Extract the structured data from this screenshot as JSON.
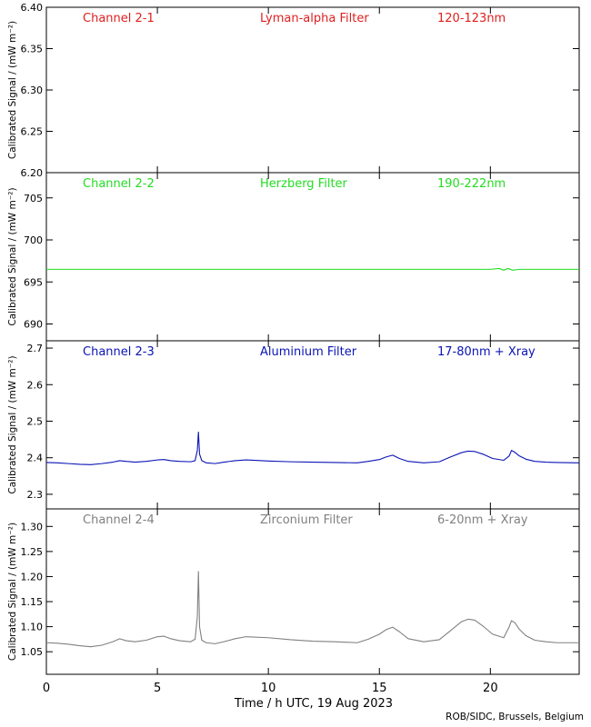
{
  "chart_data": [
    {
      "type": "line",
      "title": "Channel 2-1",
      "filter": "Lyman-alpha Filter",
      "band": "120-123nm",
      "color": "#e01e1e",
      "ylabel": "Calibrated Signal / (mW m⁻²)",
      "ylim": [
        6.2,
        6.4
      ],
      "yticks": [
        6.2,
        6.25,
        6.3,
        6.35,
        6.4
      ],
      "ytick_decimals": 2,
      "series": []
    },
    {
      "type": "line",
      "title": "Channel 2-2",
      "filter": "Herzberg Filter",
      "band": "190-222nm",
      "color": "#22dd22",
      "ylabel": "Calibrated Signal / (mW m⁻²)",
      "ylim": [
        688,
        708
      ],
      "yticks": [
        690,
        695,
        700,
        705
      ],
      "ytick_decimals": 0,
      "series": [
        {
          "x": [
            0,
            5,
            10,
            15,
            20,
            20.4,
            20.6,
            20.8,
            21.0,
            21.3,
            22,
            24
          ],
          "y": [
            696.5,
            696.5,
            696.5,
            696.5,
            696.5,
            696.6,
            696.4,
            696.6,
            696.4,
            696.5,
            696.5,
            696.5
          ]
        }
      ]
    },
    {
      "type": "line",
      "title": "Channel 2-3",
      "filter": "Aluminium Filter",
      "band": "17-80nm + Xray",
      "color": "#0a14b4",
      "ylabel": "Calibrated Signal / (mW m⁻²)",
      "ylim": [
        2.26,
        2.72
      ],
      "yticks": [
        2.3,
        2.4,
        2.5,
        2.6,
        2.7
      ],
      "ytick_decimals": 1,
      "series": [
        {
          "x": [
            0,
            0.5,
            1.0,
            1.5,
            2.0,
            2.5,
            3.0,
            3.3,
            3.6,
            4.0,
            4.5,
            5.0,
            5.3,
            5.6,
            6.0,
            6.5,
            6.7,
            6.8,
            6.85,
            6.9,
            7.0,
            7.2,
            7.6,
            8.0,
            8.5,
            9.0,
            10.0,
            11.0,
            12.0,
            13.0,
            14.0,
            14.5,
            15.0,
            15.3,
            15.6,
            15.9,
            16.3,
            17.0,
            17.7,
            18.2,
            18.7,
            19.0,
            19.3,
            19.7,
            20.1,
            20.6,
            20.85,
            20.95,
            21.1,
            21.3,
            21.6,
            22.0,
            22.5,
            23.0,
            24.0
          ],
          "y": [
            2.387,
            2.386,
            2.384,
            2.382,
            2.381,
            2.384,
            2.388,
            2.392,
            2.39,
            2.388,
            2.39,
            2.394,
            2.395,
            2.392,
            2.39,
            2.389,
            2.392,
            2.42,
            2.47,
            2.41,
            2.392,
            2.386,
            2.384,
            2.388,
            2.392,
            2.394,
            2.391,
            2.389,
            2.388,
            2.387,
            2.386,
            2.39,
            2.395,
            2.402,
            2.407,
            2.398,
            2.39,
            2.386,
            2.389,
            2.402,
            2.414,
            2.418,
            2.417,
            2.409,
            2.398,
            2.393,
            2.405,
            2.42,
            2.415,
            2.405,
            2.396,
            2.39,
            2.388,
            2.387,
            2.386
          ]
        }
      ]
    },
    {
      "type": "line",
      "title": "Channel 2-4",
      "filter": "Zirconium Filter",
      "band": "6-20nm + Xray",
      "color": "#808080",
      "ylabel": "Calibrated Signal / (mW m⁻²)",
      "ylim": [
        1.005,
        1.335
      ],
      "yticks": [
        1.05,
        1.1,
        1.15,
        1.2,
        1.25,
        1.3
      ],
      "ytick_decimals": 2,
      "series": [
        {
          "x": [
            0,
            0.5,
            1.0,
            1.5,
            2.0,
            2.5,
            3.0,
            3.3,
            3.6,
            4.0,
            4.5,
            5.0,
            5.3,
            5.6,
            6.0,
            6.5,
            6.7,
            6.8,
            6.85,
            6.9,
            7.0,
            7.2,
            7.6,
            8.0,
            8.5,
            9.0,
            10.0,
            11.0,
            12.0,
            13.0,
            14.0,
            14.5,
            15.0,
            15.3,
            15.6,
            15.9,
            16.3,
            17.0,
            17.7,
            18.2,
            18.7,
            19.0,
            19.3,
            19.7,
            20.1,
            20.6,
            20.85,
            20.95,
            21.1,
            21.3,
            21.6,
            22.0,
            22.5,
            23.0,
            24.0
          ],
          "y": [
            1.068,
            1.067,
            1.065,
            1.062,
            1.06,
            1.063,
            1.07,
            1.076,
            1.072,
            1.07,
            1.073,
            1.08,
            1.081,
            1.076,
            1.072,
            1.07,
            1.075,
            1.12,
            1.21,
            1.1,
            1.073,
            1.068,
            1.066,
            1.07,
            1.076,
            1.08,
            1.078,
            1.074,
            1.071,
            1.07,
            1.068,
            1.075,
            1.085,
            1.094,
            1.099,
            1.09,
            1.076,
            1.07,
            1.074,
            1.092,
            1.11,
            1.115,
            1.113,
            1.1,
            1.085,
            1.078,
            1.1,
            1.112,
            1.108,
            1.095,
            1.082,
            1.073,
            1.07,
            1.068,
            1.068
          ]
        }
      ]
    }
  ],
  "xaxis": {
    "label": "Time / h UTC, 19 Aug 2023",
    "xlim": [
      0,
      24
    ],
    "ticks": [
      0,
      5,
      10,
      15,
      20
    ]
  },
  "credit": "ROB/SIDC, Brussels, Belgium"
}
